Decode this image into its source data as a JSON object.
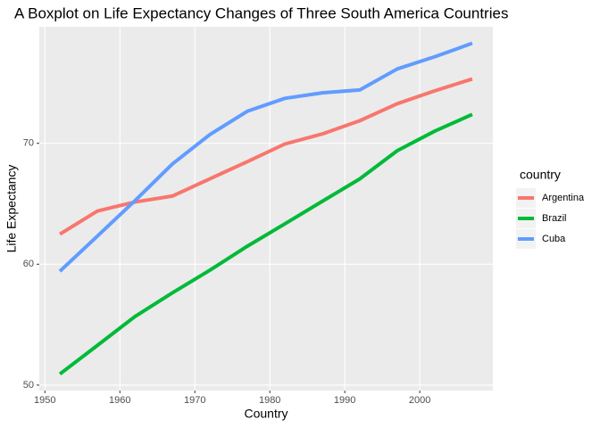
{
  "chart_data": {
    "type": "line",
    "title": "A Boxplot on Life Expectancy Changes of Three South America Countries",
    "x_label": "Country",
    "y_label": "Life Expectancy",
    "legend_title": "country",
    "x": [
      1952,
      1957,
      1962,
      1967,
      1972,
      1977,
      1982,
      1987,
      1992,
      1997,
      2002,
      2007
    ],
    "series": [
      {
        "name": "Argentina",
        "color": "#F8766D",
        "values": [
          62.485,
          64.399,
          65.142,
          65.634,
          67.065,
          68.481,
          69.942,
          70.774,
          71.868,
          73.275,
          74.34,
          75.32
        ]
      },
      {
        "name": "Brazil",
        "color": "#00BA38",
        "values": [
          50.917,
          53.285,
          55.665,
          57.632,
          59.504,
          61.489,
          63.336,
          65.205,
          67.057,
          69.388,
          71.006,
          72.39
        ]
      },
      {
        "name": "Cuba",
        "color": "#619CFF",
        "values": [
          59.421,
          62.325,
          65.246,
          68.29,
          70.723,
          72.649,
          73.717,
          74.174,
          74.414,
          76.151,
          77.158,
          78.273
        ]
      }
    ],
    "xlim": [
      1949.25,
      2009.75
    ],
    "xticks": [
      1950,
      1960,
      1970,
      1980,
      1990,
      2000
    ],
    "ylim": [
      49.55,
      79.64
    ],
    "yticks": [
      50,
      60,
      70
    ],
    "grid": true,
    "legend_position": "right"
  }
}
